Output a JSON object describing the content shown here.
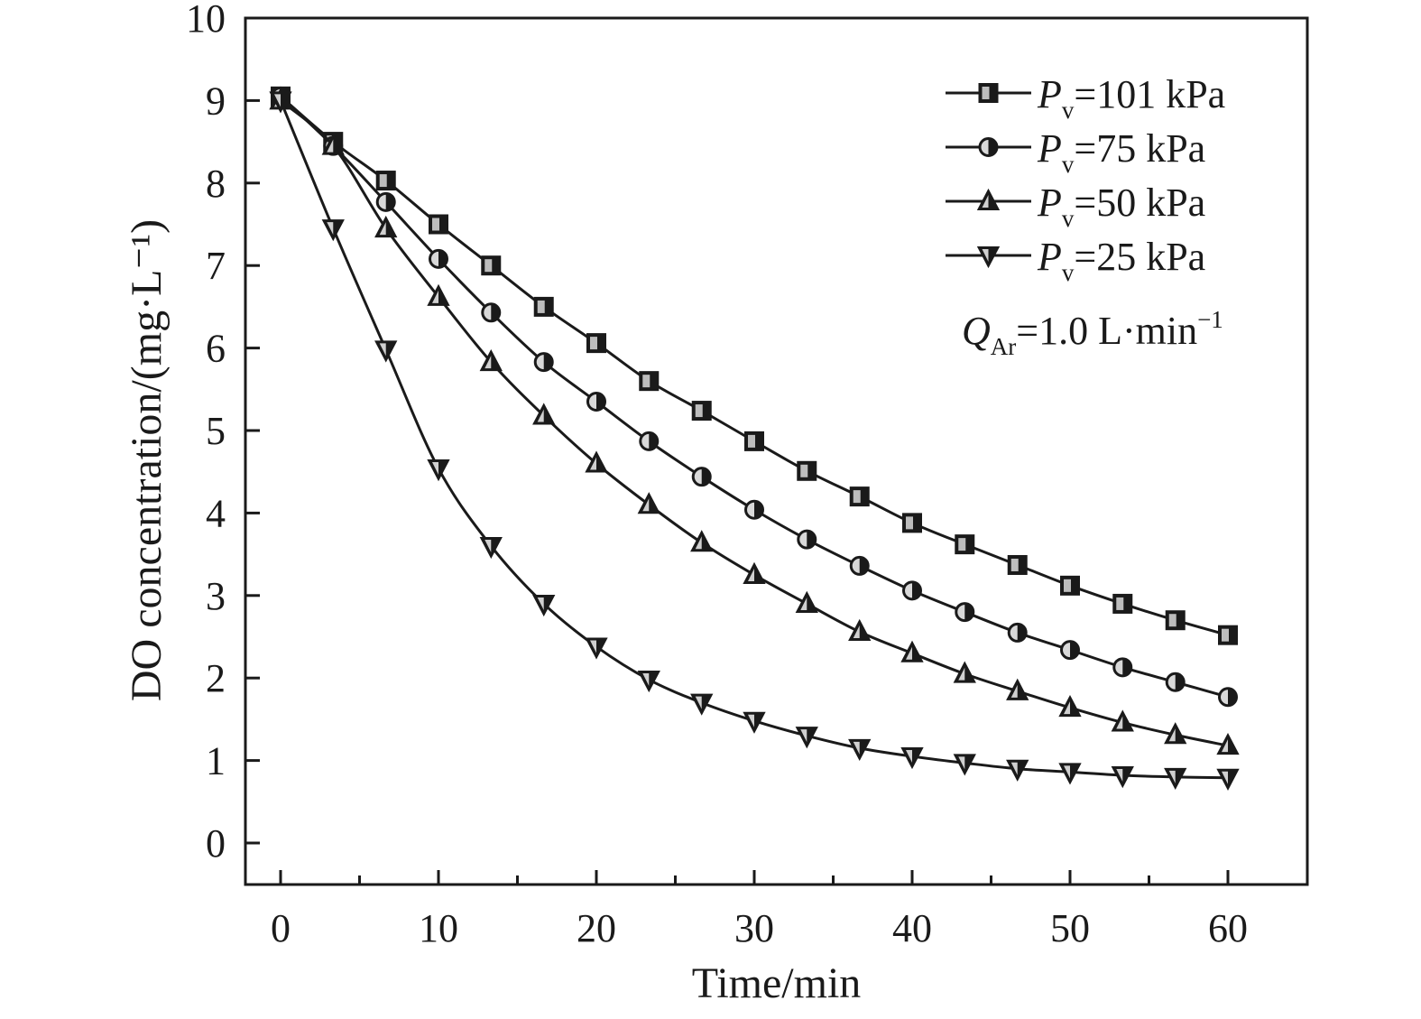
{
  "chart_data": {
    "type": "line",
    "xlabel": "Time/min",
    "ylabel": "DO concentration/(mg·L⁻¹)",
    "xlim": [
      -2.2,
      65
    ],
    "ylim": [
      -0.5,
      10
    ],
    "xticks": [
      0,
      10,
      20,
      30,
      40,
      50,
      60
    ],
    "yticks": [
      0,
      1,
      2,
      3,
      4,
      5,
      6,
      7,
      8,
      9,
      10
    ],
    "grid": false,
    "legend_position": "top-right",
    "annotation": {
      "var": "Q",
      "sub": "Ar",
      "text": "=1.0 L·min",
      "sup": "−1"
    },
    "series": [
      {
        "name": "Pv=101 kPa",
        "legend": {
          "var": "P",
          "sub": "v",
          "text": "=101 kPa"
        },
        "marker": "square",
        "x": [
          0,
          3.33,
          6.67,
          10,
          13.33,
          16.67,
          20,
          23.33,
          26.67,
          30,
          33.33,
          36.67,
          40,
          43.33,
          46.67,
          50,
          53.33,
          56.67,
          60
        ],
        "y": [
          9.05,
          8.5,
          8.03,
          7.5,
          7.0,
          6.5,
          6.06,
          5.6,
          5.24,
          4.87,
          4.51,
          4.2,
          3.88,
          3.62,
          3.37,
          3.12,
          2.9,
          2.7,
          2.52
        ]
      },
      {
        "name": "Pv=75 kPa",
        "legend": {
          "var": "P",
          "sub": "v",
          "text": "=75 kPa"
        },
        "marker": "circle",
        "x": [
          0,
          3.33,
          6.67,
          10,
          13.33,
          16.67,
          20,
          23.33,
          26.67,
          30,
          33.33,
          36.67,
          40,
          43.33,
          46.67,
          50,
          53.33,
          56.67,
          60
        ],
        "y": [
          9.05,
          8.45,
          7.77,
          7.08,
          6.43,
          5.83,
          5.35,
          4.87,
          4.44,
          4.04,
          3.68,
          3.36,
          3.06,
          2.8,
          2.55,
          2.34,
          2.13,
          1.95,
          1.77
        ]
      },
      {
        "name": "Pv=50 kPa",
        "legend": {
          "var": "P",
          "sub": "v",
          "text": "=50 kPa"
        },
        "marker": "triangle-up",
        "x": [
          0,
          3.33,
          6.67,
          10,
          13.33,
          16.67,
          20,
          23.33,
          26.67,
          30,
          33.33,
          36.67,
          40,
          43.33,
          46.67,
          50,
          53.33,
          56.67,
          60
        ],
        "y": [
          9.0,
          8.45,
          7.45,
          6.62,
          5.83,
          5.18,
          4.6,
          4.1,
          3.64,
          3.25,
          2.9,
          2.56,
          2.3,
          2.05,
          1.84,
          1.64,
          1.46,
          1.31,
          1.18
        ]
      },
      {
        "name": "Pv=25 kPa",
        "legend": {
          "var": "P",
          "sub": "v",
          "text": "=25 kPa"
        },
        "marker": "triangle-down",
        "x": [
          0,
          3.33,
          6.67,
          10,
          13.33,
          16.67,
          20,
          23.33,
          26.67,
          30,
          33.33,
          36.67,
          40,
          43.33,
          46.67,
          50,
          53.33,
          56.67,
          60
        ],
        "y": [
          9.0,
          7.45,
          5.98,
          4.54,
          3.6,
          2.9,
          2.38,
          1.98,
          1.7,
          1.48,
          1.3,
          1.15,
          1.05,
          0.97,
          0.9,
          0.86,
          0.82,
          0.8,
          0.79
        ]
      }
    ]
  }
}
